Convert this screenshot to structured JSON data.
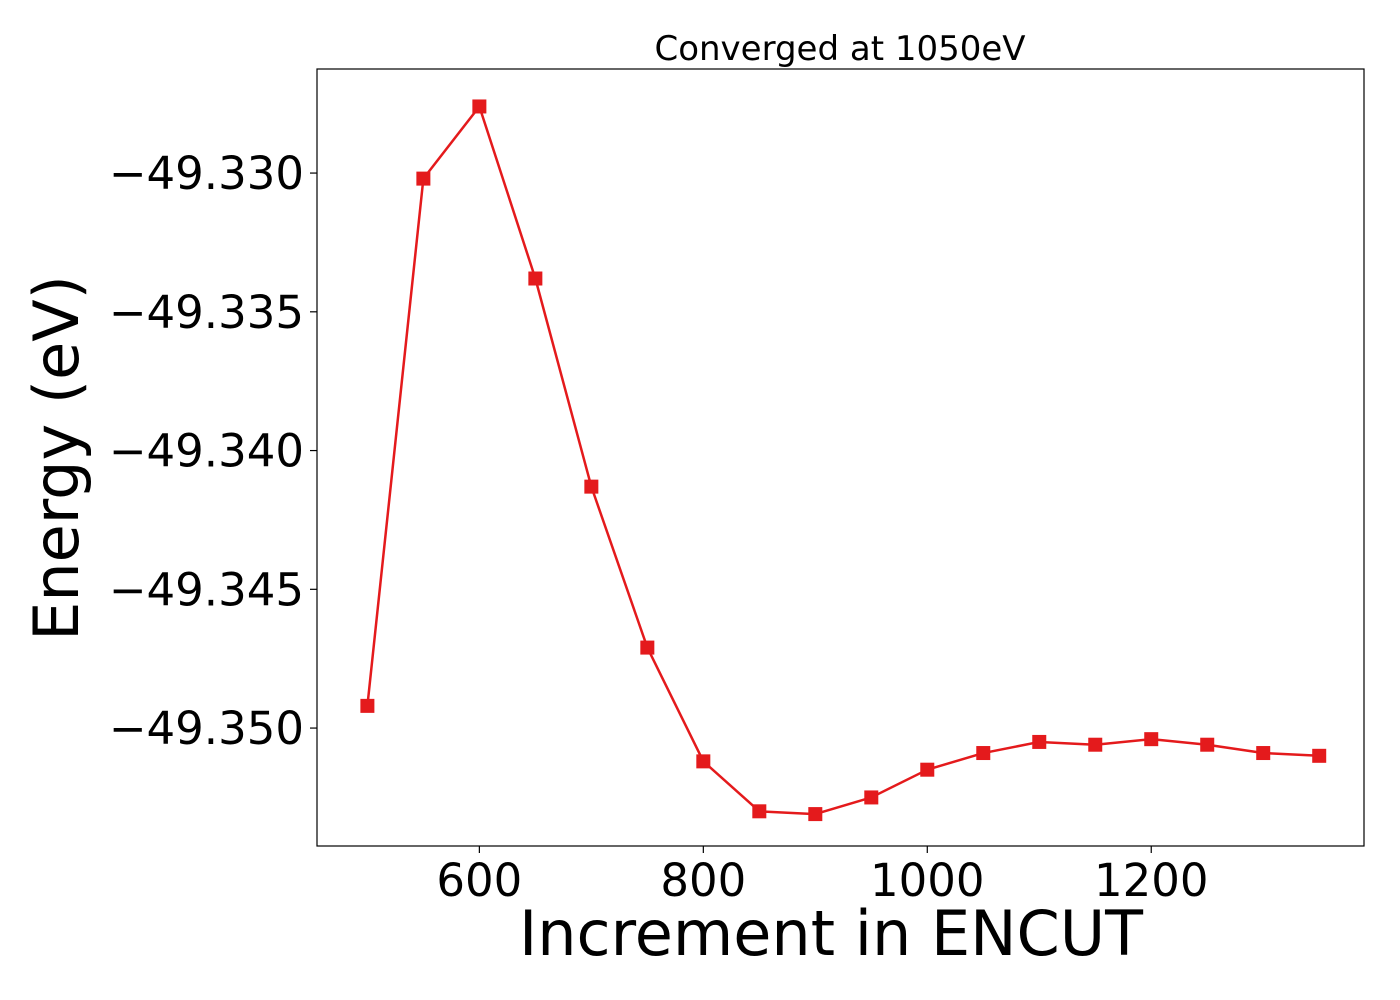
{
  "chart_data": {
    "type": "line",
    "title": "Converged at 1050eV",
    "xlabel": "Increment in ENCUT",
    "ylabel": "Energy (eV)",
    "xlim": [
      455,
      1390
    ],
    "ylim": [
      -49.35425,
      -49.32625
    ],
    "x_ticks": [
      600,
      800,
      1000,
      1200
    ],
    "x_tick_labels": [
      "600",
      "800",
      "1000",
      "1200"
    ],
    "y_ticks": [
      -49.33,
      -49.335,
      -49.34,
      -49.345,
      -49.35
    ],
    "y_tick_labels": [
      "−49.330",
      "−49.335",
      "−49.340",
      "−49.345",
      "−49.350"
    ],
    "grid": false,
    "legend": "none",
    "series": [
      {
        "color": "#e41a1c",
        "marker": "square",
        "x": [
          500,
          550,
          600,
          650,
          700,
          750,
          800,
          850,
          900,
          950,
          1000,
          1050,
          1100,
          1150,
          1200,
          1250,
          1300,
          1350
        ],
        "y": [
          -49.3492,
          -49.3302,
          -49.3276,
          -49.3338,
          -49.3413,
          -49.3471,
          -49.3512,
          -49.353,
          -49.3531,
          -49.3525,
          -49.3515,
          -49.3509,
          -49.3505,
          -49.3506,
          -49.3504,
          -49.3506,
          -49.3509,
          -49.351
        ]
      }
    ]
  }
}
